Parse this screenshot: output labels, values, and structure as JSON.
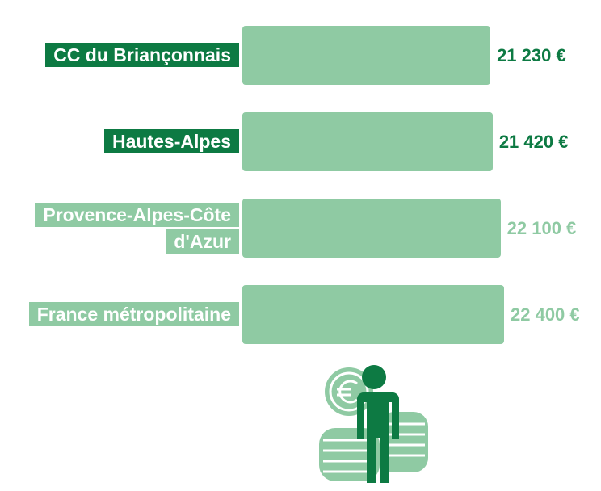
{
  "chart_data": {
    "type": "bar",
    "orientation": "horizontal",
    "categories": [
      "CC du Briançonnais",
      "Hautes-Alpes",
      "Provence-Alpes-Côte d'Azur",
      "France métropolitaine"
    ],
    "values": [
      21230,
      21420,
      22100,
      22400
    ],
    "value_labels": [
      "21 230 €",
      "21 420 €",
      "22 100 €",
      "22 400 €"
    ],
    "color": "#8fcaa3",
    "label_colors": [
      "#0d7a43",
      "#0d7a43",
      "#8fcaa3",
      "#8fcaa3"
    ]
  }
}
